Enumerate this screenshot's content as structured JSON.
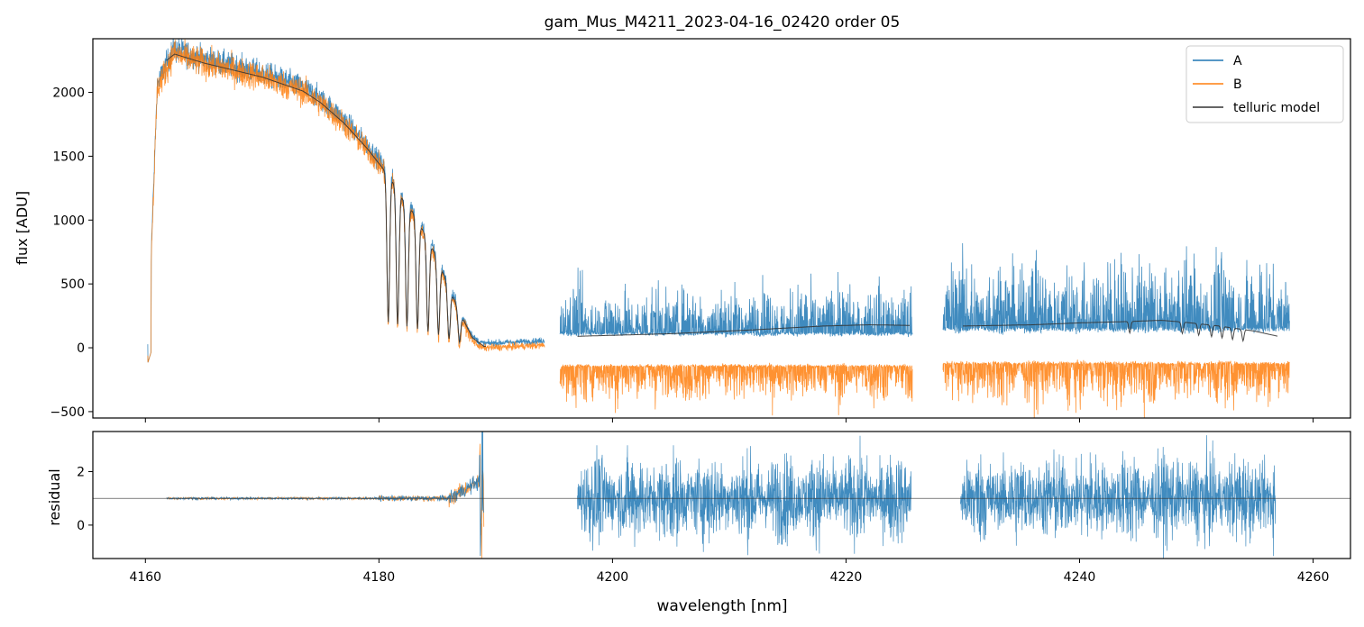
{
  "chart_data": [
    {
      "type": "line",
      "panel": "top",
      "title": "gam_Mus_M4211_2023-04-16_02420  order 05",
      "ylabel": "flux [ADU]",
      "xlim": [
        4155.5,
        4263.2
      ],
      "ylim": [
        -550,
        2420
      ],
      "yticks": [
        -500,
        0,
        500,
        1000,
        1500,
        2000
      ],
      "grid": false,
      "legend_position": "top-right",
      "legend": [
        "A",
        "B",
        "telluric model"
      ],
      "segments": [
        {
          "x_start": 4160.2,
          "x_end": 4194.2,
          "region": "continuum with telluric absorption bands",
          "peak_flux": 2350,
          "flux_at_4170": 2140,
          "flux_at_4175": 1880,
          "flux_at_4180": 1430,
          "tail_flux": 0
        },
        {
          "x_start": 4195.5,
          "x_end": 4225.7,
          "region": "noisy",
          "A_mean": 120,
          "A_max": 580,
          "B_mean": -150,
          "B_min": -520
        },
        {
          "x_start": 4228.3,
          "x_end": 4258.0,
          "region": "noisy",
          "A_mean": 160,
          "A_max": 860,
          "B_mean": -130,
          "B_min": -540
        }
      ],
      "series": [
        {
          "name": "A",
          "color": "#1f77b4"
        },
        {
          "name": "B",
          "color": "#ff7f0e"
        },
        {
          "name": "telluric model",
          "color": "#333333",
          "x": [
            4161.8,
            4162.5,
            4165,
            4170,
            4173.5,
            4175,
            4177,
            4179,
            4180.2,
            4181,
            4182,
            4183,
            4184,
            4185,
            4186,
            4187,
            4188,
            4189,
            4197,
            4205,
            4212,
            4218,
            4222,
            4225.5,
            4230,
            4236,
            4240,
            4244,
            4247,
            4249,
            4252,
            4255,
            4257
          ],
          "y": [
            2250,
            2300,
            2230,
            2120,
            2010,
            1920,
            1760,
            1560,
            1420,
            1330,
            1170,
            1050,
            880,
            700,
            470,
            260,
            80,
            10,
            90,
            110,
            140,
            170,
            180,
            175,
            170,
            180,
            195,
            205,
            215,
            200,
            170,
            130,
            90
          ]
        }
      ]
    },
    {
      "type": "line",
      "panel": "bottom",
      "xlabel": "wavelength [nm]",
      "ylabel": "residual",
      "xlim": [
        4155.5,
        4263.2
      ],
      "ylim": [
        -1.25,
        3.5
      ],
      "xticks": [
        4160,
        4180,
        4200,
        4220,
        4240,
        4260
      ],
      "yticks": [
        0,
        2
      ],
      "reference_line": 1.0,
      "segments": [
        {
          "x_start": 4161.8,
          "x_end": 4189.0,
          "mean": 1.0,
          "region": "quiet, rising near end"
        },
        {
          "x_start": 4197.0,
          "x_end": 4225.6,
          "mean": 1.0,
          "range": [
            -1.25,
            3.5
          ]
        },
        {
          "x_start": 4229.8,
          "x_end": 4256.8,
          "mean": 1.0,
          "range": [
            -1.25,
            3.5
          ]
        }
      ]
    }
  ]
}
